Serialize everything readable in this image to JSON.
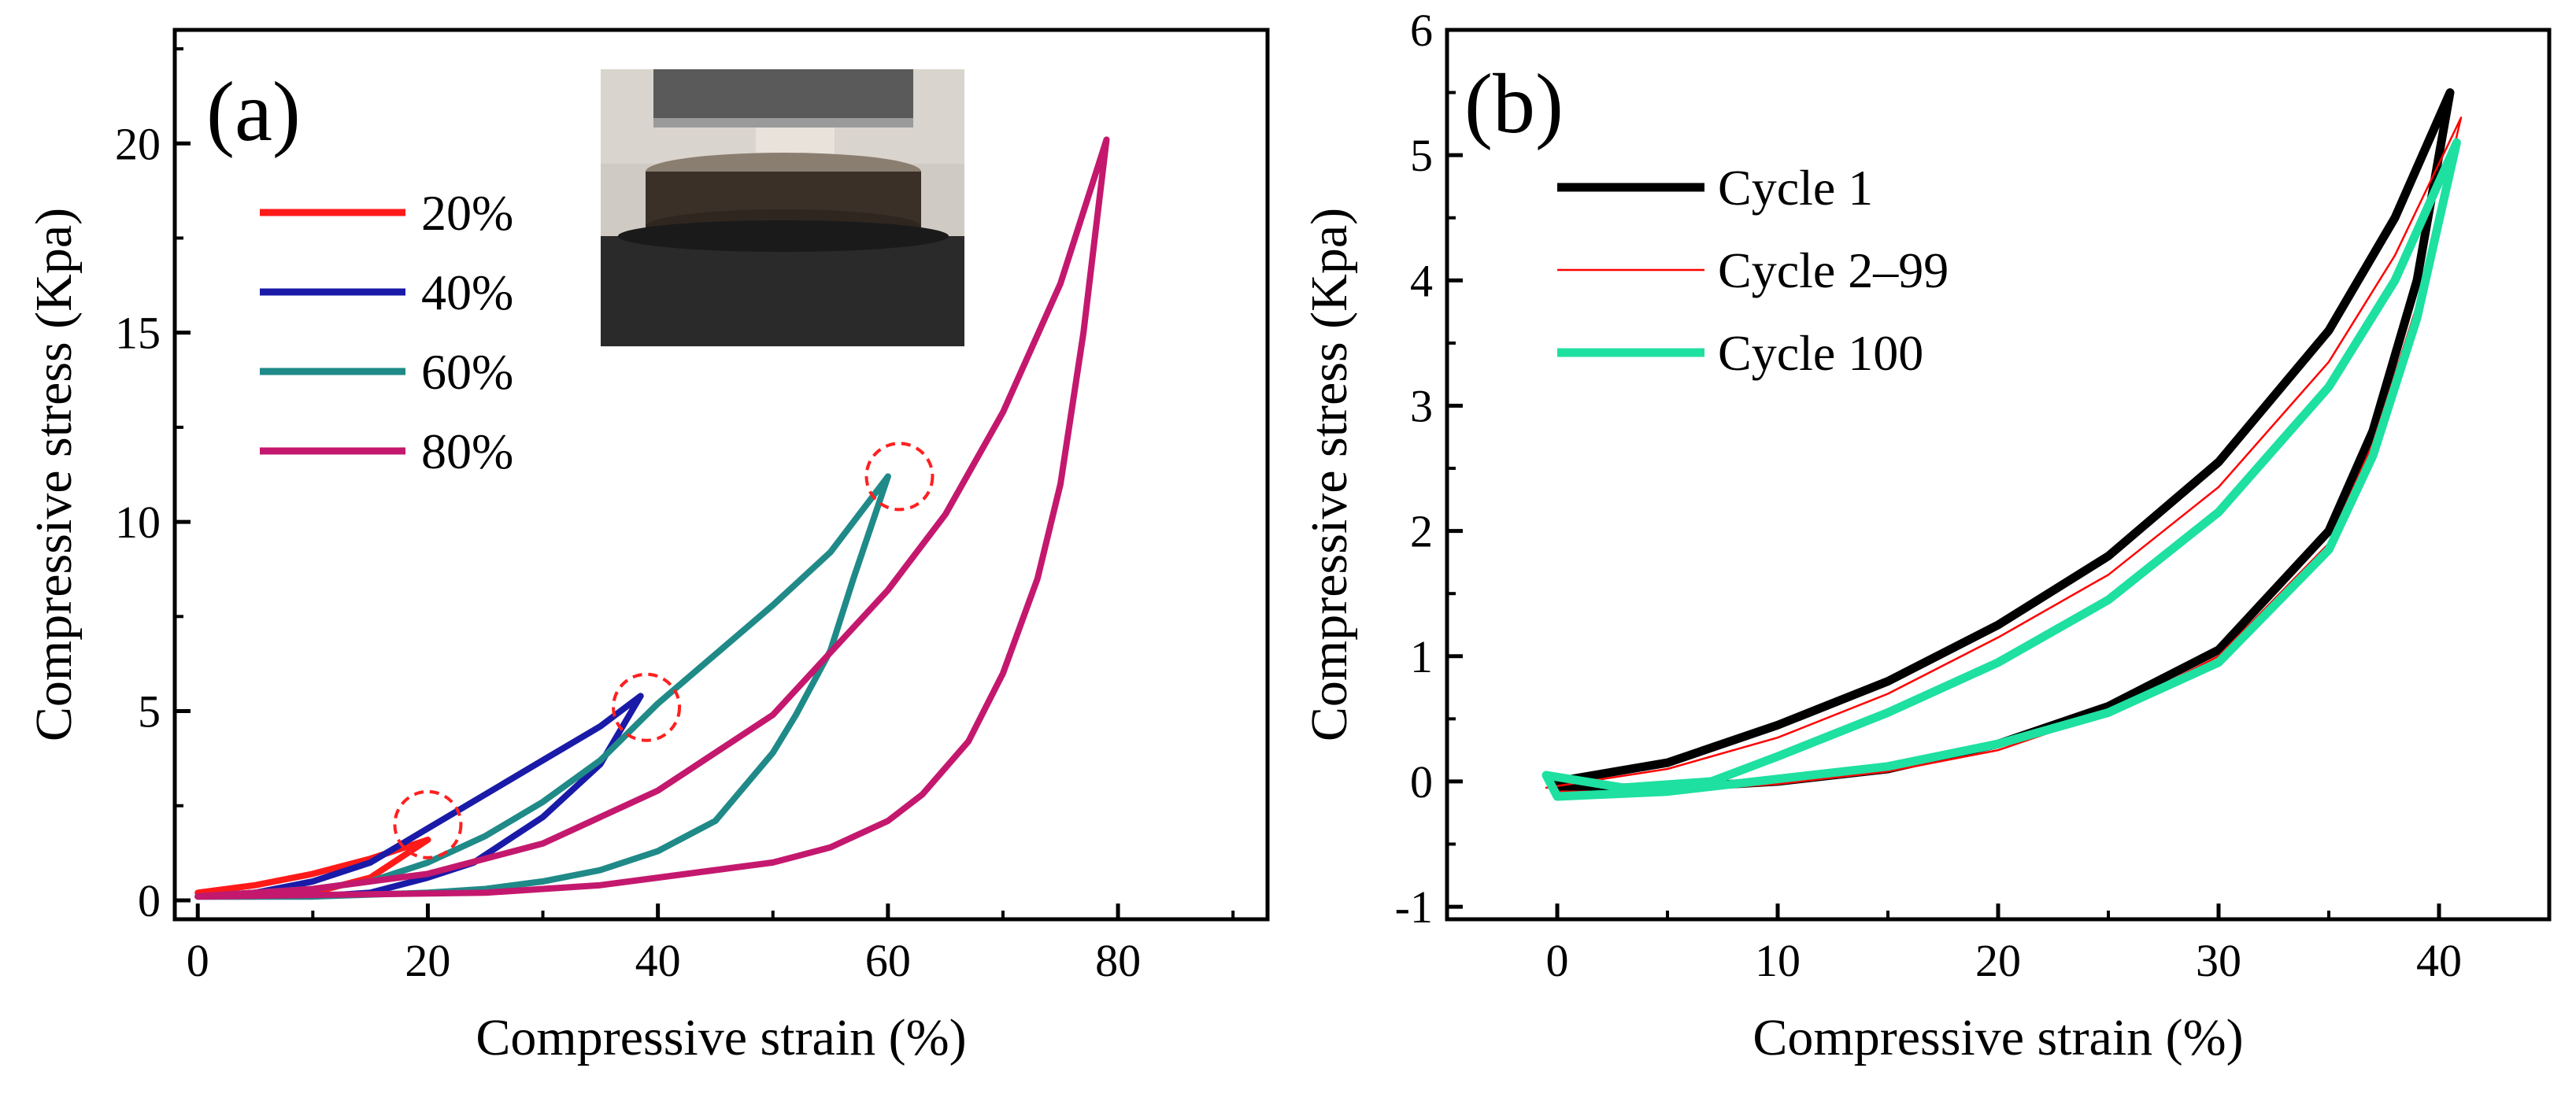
{
  "colors": {
    "s20": "#ff1a1a",
    "s40": "#1a1aa8",
    "s60": "#1f8a88",
    "s80": "#c4186e",
    "cycle1": "#000000",
    "cycle2_99": "#ff0000",
    "cycle100": "#1ee0a0",
    "marker_circle": "#ff2020"
  },
  "chart_data": [
    {
      "id": "a",
      "type": "line",
      "panel_label": "(a)",
      "xlabel": "Compressive strain (%)",
      "ylabel": "Compressive stress (Kpa)",
      "xlim": [
        -2,
        93
      ],
      "ylim": [
        -0.5,
        23
      ],
      "xticks": [
        0,
        20,
        40,
        60,
        80
      ],
      "yticks": [
        0,
        5,
        10,
        15,
        20
      ],
      "inset_photo": "compression-test-photo",
      "legend_position": "upper-left",
      "markers": [
        {
          "x": 20,
          "y": 2.0
        },
        {
          "x": 39,
          "y": 5.1
        },
        {
          "x": 61,
          "y": 11.2
        }
      ],
      "series": [
        {
          "name": "20%",
          "color_key": "s20",
          "loading": [
            [
              0,
              0.2
            ],
            [
              5,
              0.4
            ],
            [
              10,
              0.7
            ],
            [
              15,
              1.1
            ],
            [
              20,
              1.6
            ]
          ],
          "unloading": [
            [
              20,
              1.6
            ],
            [
              15,
              0.6
            ],
            [
              10,
              0.2
            ],
            [
              5,
              0.1
            ],
            [
              0,
              0.1
            ]
          ]
        },
        {
          "name": "40%",
          "color_key": "s40",
          "loading": [
            [
              0,
              0.1
            ],
            [
              5,
              0.2
            ],
            [
              10,
              0.5
            ],
            [
              15,
              1.0
            ],
            [
              20,
              1.9
            ],
            [
              25,
              2.8
            ],
            [
              30,
              3.7
            ],
            [
              35,
              4.6
            ],
            [
              38.5,
              5.4
            ]
          ],
          "unloading": [
            [
              38.5,
              5.4
            ],
            [
              35,
              3.6
            ],
            [
              30,
              2.2
            ],
            [
              27,
              1.6
            ],
            [
              24,
              1.0
            ],
            [
              20,
              0.6
            ],
            [
              15,
              0.2
            ],
            [
              10,
              0.1
            ],
            [
              0,
              0.1
            ]
          ]
        },
        {
          "name": "60%",
          "color_key": "s60",
          "loading": [
            [
              0,
              0.1
            ],
            [
              10,
              0.3
            ],
            [
              15,
              0.5
            ],
            [
              20,
              1.0
            ],
            [
              25,
              1.7
            ],
            [
              30,
              2.6
            ],
            [
              35,
              3.7
            ],
            [
              40,
              5.2
            ],
            [
              45,
              6.5
            ],
            [
              50,
              7.8
            ],
            [
              55,
              9.2
            ],
            [
              60,
              11.2
            ]
          ],
          "unloading": [
            [
              60,
              11.2
            ],
            [
              57,
              8.5
            ],
            [
              55,
              6.6
            ],
            [
              52,
              4.9
            ],
            [
              50,
              3.9
            ],
            [
              45,
              2.1
            ],
            [
              40,
              1.3
            ],
            [
              35,
              0.8
            ],
            [
              30,
              0.5
            ],
            [
              25,
              0.3
            ],
            [
              20,
              0.2
            ],
            [
              10,
              0.1
            ],
            [
              0,
              0.1
            ]
          ]
        },
        {
          "name": "80%",
          "color_key": "s80",
          "loading": [
            [
              0,
              0.1
            ],
            [
              10,
              0.3
            ],
            [
              20,
              0.7
            ],
            [
              30,
              1.5
            ],
            [
              40,
              2.9
            ],
            [
              50,
              4.9
            ],
            [
              60,
              8.2
            ],
            [
              65,
              10.2
            ],
            [
              70,
              12.9
            ],
            [
              75,
              16.3
            ],
            [
              79,
              20.1
            ]
          ],
          "unloading": [
            [
              79,
              20.1
            ],
            [
              77,
              15.0
            ],
            [
              75,
              11.0
            ],
            [
              73,
              8.5
            ],
            [
              70,
              6.0
            ],
            [
              67,
              4.2
            ],
            [
              63,
              2.8
            ],
            [
              60,
              2.1
            ],
            [
              55,
              1.4
            ],
            [
              50,
              1.0
            ],
            [
              45,
              0.8
            ],
            [
              40,
              0.6
            ],
            [
              35,
              0.4
            ],
            [
              30,
              0.3
            ],
            [
              25,
              0.2
            ],
            [
              0,
              0.1
            ]
          ]
        }
      ]
    },
    {
      "id": "b",
      "type": "line",
      "panel_label": "(b)",
      "xlabel": "Compressive strain (%)",
      "ylabel": "Compressive stress (Kpa)",
      "xlim": [
        -5,
        45
      ],
      "ylim": [
        -1.1,
        6
      ],
      "xticks": [
        0,
        10,
        20,
        30,
        40
      ],
      "yticks": [
        -1,
        0,
        1,
        2,
        3,
        4,
        5,
        6
      ],
      "legend_position": "upper-left",
      "series": [
        {
          "name": "Cycle 1",
          "color_key": "cycle1",
          "loading": [
            [
              0,
              0.0
            ],
            [
              5,
              0.15
            ],
            [
              10,
              0.45
            ],
            [
              15,
              0.8
            ],
            [
              20,
              1.25
            ],
            [
              25,
              1.8
            ],
            [
              30,
              2.55
            ],
            [
              35,
              3.6
            ],
            [
              38,
              4.5
            ],
            [
              40.5,
              5.5
            ]
          ],
          "unloading": [
            [
              40.5,
              5.5
            ],
            [
              39,
              4.0
            ],
            [
              37,
              2.8
            ],
            [
              35,
              2.0
            ],
            [
              30,
              1.05
            ],
            [
              25,
              0.6
            ],
            [
              20,
              0.3
            ],
            [
              15,
              0.1
            ],
            [
              10,
              0.0
            ],
            [
              5,
              -0.05
            ],
            [
              0,
              -0.05
            ]
          ]
        },
        {
          "name": "Cycle 2–99",
          "color_key": "cycle2_99",
          "loading": [
            [
              -0.5,
              -0.05
            ],
            [
              5,
              0.1
            ],
            [
              10,
              0.35
            ],
            [
              15,
              0.7
            ],
            [
              20,
              1.15
            ],
            [
              25,
              1.65
            ],
            [
              30,
              2.35
            ],
            [
              35,
              3.35
            ],
            [
              38,
              4.2
            ],
            [
              41,
              5.3
            ]
          ],
          "unloading": [
            [
              41,
              5.3
            ],
            [
              39,
              3.8
            ],
            [
              37,
              2.7
            ],
            [
              35,
              1.9
            ],
            [
              30,
              1.0
            ],
            [
              25,
              0.55
            ],
            [
              20,
              0.25
            ],
            [
              15,
              0.08
            ],
            [
              10,
              -0.02
            ],
            [
              5,
              -0.08
            ],
            [
              0,
              -0.08
            ]
          ]
        },
        {
          "name": "Cycle 100",
          "color_key": "cycle100",
          "loading": [
            [
              -0.5,
              0.05
            ],
            [
              3,
              -0.05
            ],
            [
              7,
              0.0
            ],
            [
              10,
              0.2
            ],
            [
              15,
              0.55
            ],
            [
              20,
              0.95
            ],
            [
              25,
              1.45
            ],
            [
              30,
              2.15
            ],
            [
              35,
              3.15
            ],
            [
              38,
              4.0
            ],
            [
              40.8,
              5.1
            ]
          ],
          "unloading": [
            [
              40.8,
              5.1
            ],
            [
              39,
              3.7
            ],
            [
              37,
              2.6
            ],
            [
              35,
              1.85
            ],
            [
              30,
              0.95
            ],
            [
              25,
              0.55
            ],
            [
              20,
              0.3
            ],
            [
              15,
              0.12
            ],
            [
              10,
              0.02
            ],
            [
              5,
              -0.08
            ],
            [
              0,
              -0.12
            ],
            [
              -0.5,
              0.05
            ]
          ]
        }
      ]
    }
  ]
}
